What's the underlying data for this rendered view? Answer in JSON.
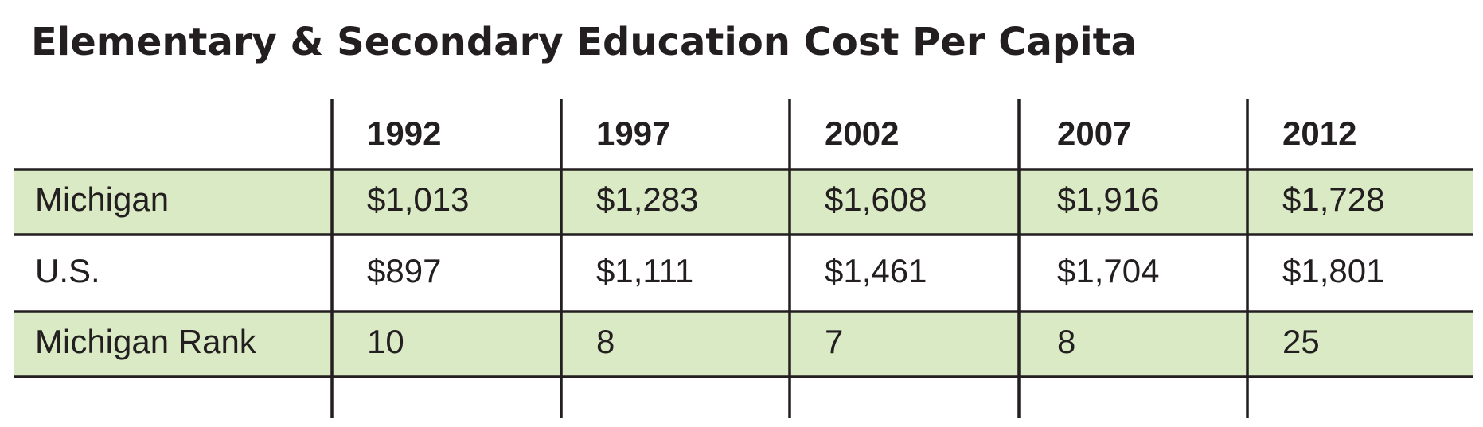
{
  "title": "Elementary & Secondary Education Cost Per Capita",
  "table": {
    "columns": [
      "1992",
      "1997",
      "2002",
      "2007",
      "2012"
    ],
    "rows": [
      {
        "label": "Michigan",
        "cells": [
          "$1,013",
          "$1,283",
          "$1,608",
          "$1,916",
          "$1,728"
        ]
      },
      {
        "label": "U.S.",
        "cells": [
          "$897",
          "$1,111",
          "$1,461",
          "$1,704",
          "$1,801"
        ]
      },
      {
        "label": "Michigan Rank",
        "cells": [
          10,
          8,
          7,
          8,
          25
        ]
      }
    ]
  }
}
